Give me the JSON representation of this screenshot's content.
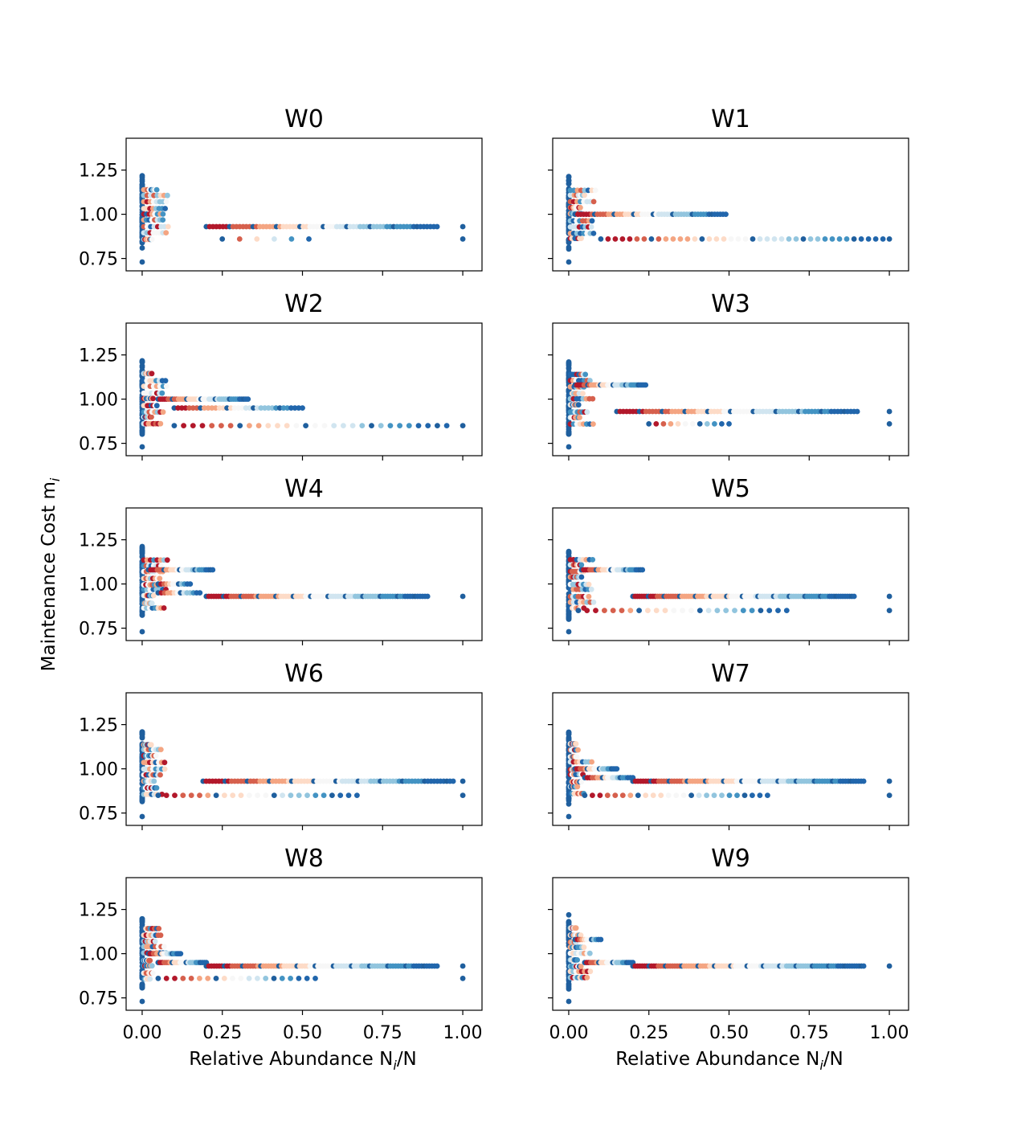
{
  "figure": {
    "ylabel": "Maintenance Cost m",
    "ylabel_sub": "i",
    "xlabel": "Relative Abundance N",
    "xlabel_sub": "i",
    "xlabel_tail": "/N"
  },
  "chart_data": [
    {
      "type": "scatter",
      "title": "W0",
      "xlim": [
        -0.05,
        1.06
      ],
      "ylim": [
        0.68,
        1.43
      ],
      "xticks": [
        "0.00",
        "0.25",
        "0.50",
        "0.75",
        "1.00"
      ],
      "yticks": [
        "0.75",
        "1.00",
        "1.25"
      ],
      "colormap": "RdBu",
      "clusters": [
        {
          "y": 0.93,
          "from": 0.2,
          "to": 0.92,
          "n": 70
        },
        {
          "y": 0.86,
          "from": 0.25,
          "to": 0.52,
          "n": 6
        }
      ],
      "points": [
        {
          "x": 1.0,
          "y": 0.93
        },
        {
          "x": 1.0,
          "y": 0.86
        }
      ]
    },
    {
      "type": "scatter",
      "title": "W1",
      "xlim": [
        -0.05,
        1.06
      ],
      "ylim": [
        0.68,
        1.43
      ],
      "xticks": [
        "0.00",
        "0.25",
        "0.50",
        "0.75",
        "1.00"
      ],
      "yticks": [],
      "colormap": "RdBu",
      "clusters": [
        {
          "y": 1.0,
          "from": 0.02,
          "to": 0.49,
          "n": 55
        },
        {
          "y": 0.86,
          "from": 0.1,
          "to": 0.98,
          "n": 40
        }
      ],
      "points": [
        {
          "x": 1.0,
          "y": 0.86
        }
      ]
    },
    {
      "type": "scatter",
      "title": "W2",
      "xlim": [
        -0.05,
        1.06
      ],
      "ylim": [
        0.68,
        1.43
      ],
      "xticks": [
        "0.00",
        "0.25",
        "0.50",
        "0.75",
        "1.00"
      ],
      "yticks": [
        "0.75",
        "1.00",
        "1.25"
      ],
      "colormap": "RdBu",
      "clusters": [
        {
          "y": 1.0,
          "from": 0.05,
          "to": 0.33,
          "n": 45
        },
        {
          "y": 0.95,
          "from": 0.1,
          "to": 0.5,
          "n": 35
        },
        {
          "y": 0.85,
          "from": 0.1,
          "to": 0.95,
          "n": 30
        }
      ],
      "points": [
        {
          "x": 1.0,
          "y": 0.85
        }
      ]
    },
    {
      "type": "scatter",
      "title": "W3",
      "xlim": [
        -0.05,
        1.06
      ],
      "ylim": [
        0.68,
        1.43
      ],
      "xticks": [
        "0.00",
        "0.25",
        "0.50",
        "0.75",
        "1.00"
      ],
      "yticks": [],
      "colormap": "RdBu",
      "clusters": [
        {
          "y": 1.08,
          "from": 0.02,
          "to": 0.24,
          "n": 40
        },
        {
          "y": 0.93,
          "from": 0.15,
          "to": 0.9,
          "n": 75
        },
        {
          "y": 0.86,
          "from": 0.25,
          "to": 0.5,
          "n": 12
        }
      ],
      "points": [
        {
          "x": 1.0,
          "y": 0.93
        },
        {
          "x": 1.0,
          "y": 0.86
        }
      ]
    },
    {
      "type": "scatter",
      "title": "W4",
      "xlim": [
        -0.05,
        1.06
      ],
      "ylim": [
        0.68,
        1.43
      ],
      "xticks": [
        "0.00",
        "0.25",
        "0.50",
        "0.75",
        "1.00"
      ],
      "yticks": [
        "0.75",
        "1.00",
        "1.25"
      ],
      "colormap": "RdBu",
      "clusters": [
        {
          "y": 1.08,
          "from": 0.02,
          "to": 0.22,
          "n": 30
        },
        {
          "y": 1.0,
          "from": 0.05,
          "to": 0.15,
          "n": 12
        },
        {
          "y": 0.95,
          "from": 0.05,
          "to": 0.18,
          "n": 14
        },
        {
          "y": 0.93,
          "from": 0.2,
          "to": 0.89,
          "n": 90
        }
      ],
      "points": [
        {
          "x": 1.0,
          "y": 0.93
        }
      ]
    },
    {
      "type": "scatter",
      "title": "W5",
      "xlim": [
        -0.05,
        1.06
      ],
      "ylim": [
        0.68,
        1.43
      ],
      "xticks": [
        "0.00",
        "0.25",
        "0.50",
        "0.75",
        "1.00"
      ],
      "yticks": [],
      "colormap": "RdBu",
      "clusters": [
        {
          "y": 1.08,
          "from": 0.04,
          "to": 0.23,
          "n": 30
        },
        {
          "y": 0.93,
          "from": 0.2,
          "to": 0.89,
          "n": 100
        },
        {
          "y": 0.85,
          "from": 0.03,
          "to": 0.68,
          "n": 25
        }
      ],
      "points": [
        {
          "x": 1.0,
          "y": 0.93
        },
        {
          "x": 1.0,
          "y": 0.85
        }
      ]
    },
    {
      "type": "scatter",
      "title": "W6",
      "xlim": [
        -0.05,
        1.06
      ],
      "ylim": [
        0.68,
        1.43
      ],
      "xticks": [
        "0.00",
        "0.25",
        "0.50",
        "0.75",
        "1.00"
      ],
      "yticks": [
        "0.75",
        "1.00",
        "1.25"
      ],
      "colormap": "RdBu",
      "clusters": [
        {
          "y": 0.93,
          "from": 0.19,
          "to": 0.97,
          "n": 80
        },
        {
          "y": 0.85,
          "from": 0.05,
          "to": 0.67,
          "n": 25
        }
      ],
      "points": [
        {
          "x": 1.0,
          "y": 0.93
        },
        {
          "x": 1.0,
          "y": 0.85
        }
      ]
    },
    {
      "type": "scatter",
      "title": "W7",
      "xlim": [
        -0.05,
        1.06
      ],
      "ylim": [
        0.68,
        1.43
      ],
      "xticks": [
        "0.00",
        "0.25",
        "0.50",
        "0.75",
        "1.00"
      ],
      "yticks": [],
      "colormap": "RdBu",
      "clusters": [
        {
          "y": 1.0,
          "from": 0.02,
          "to": 0.15,
          "n": 25
        },
        {
          "y": 0.95,
          "from": 0.05,
          "to": 0.2,
          "n": 20
        },
        {
          "y": 0.93,
          "from": 0.2,
          "to": 0.92,
          "n": 90
        },
        {
          "y": 0.85,
          "from": 0.05,
          "to": 0.62,
          "n": 25
        }
      ],
      "points": [
        {
          "x": 1.0,
          "y": 0.93
        },
        {
          "x": 1.0,
          "y": 0.85
        }
      ]
    },
    {
      "type": "scatter",
      "title": "W8",
      "xlim": [
        -0.05,
        1.06
      ],
      "ylim": [
        0.68,
        1.43
      ],
      "xticks": [
        "0.00",
        "0.25",
        "0.50",
        "0.75",
        "1.00"
      ],
      "yticks": [
        "0.75",
        "1.00",
        "1.25"
      ],
      "colormap": "RdBu",
      "xlabel_visible": true,
      "clusters": [
        {
          "y": 1.0,
          "from": 0.02,
          "to": 0.12,
          "n": 20
        },
        {
          "y": 0.95,
          "from": 0.05,
          "to": 0.2,
          "n": 25
        },
        {
          "y": 0.93,
          "from": 0.2,
          "to": 0.92,
          "n": 90
        },
        {
          "y": 0.86,
          "from": 0.05,
          "to": 0.54,
          "n": 20
        }
      ],
      "points": [
        {
          "x": 1.0,
          "y": 0.93
        },
        {
          "x": 1.0,
          "y": 0.86
        }
      ]
    },
    {
      "type": "scatter",
      "title": "W9",
      "xlim": [
        -0.05,
        1.06
      ],
      "ylim": [
        0.68,
        1.43
      ],
      "xticks": [
        "0.00",
        "0.25",
        "0.50",
        "0.75",
        "1.00"
      ],
      "yticks": [],
      "colormap": "RdBu",
      "xlabel_visible": true,
      "clusters": [
        {
          "y": 1.08,
          "from": 0.02,
          "to": 0.1,
          "n": 12
        },
        {
          "y": 0.95,
          "from": 0.05,
          "to": 0.2,
          "n": 25
        },
        {
          "y": 0.93,
          "from": 0.2,
          "to": 0.92,
          "n": 100
        }
      ],
      "points": [
        {
          "x": 1.0,
          "y": 0.93
        }
      ]
    }
  ]
}
